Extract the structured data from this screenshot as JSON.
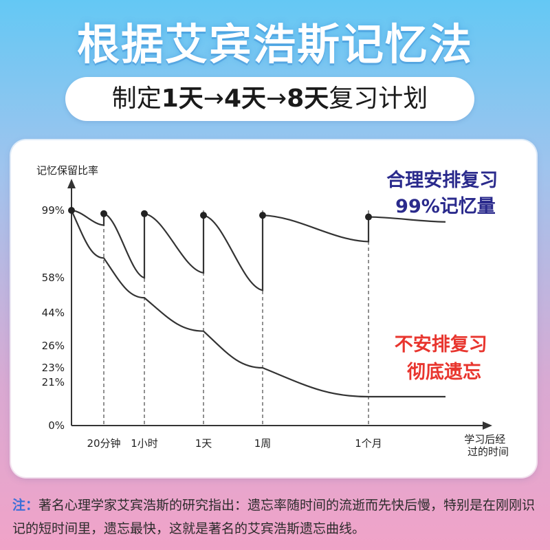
{
  "header": {
    "title_prefix": "根据",
    "title_highlight": "艾宾浩斯记忆法",
    "subtitle_prefix": "制定",
    "subtitle_d1": "1天",
    "subtitle_arrow1": "→",
    "subtitle_d2": "4天",
    "subtitle_arrow2": "→",
    "subtitle_d3": "8天",
    "subtitle_suffix": "复习计划"
  },
  "note": {
    "label": "注：",
    "text": "著名心理学家艾宾浩斯的研究指出：遗忘率随时间的流逝而先快后慢，特别是在刚刚识记的短时间里，遗忘最快，这就是著名的艾宾浩斯遗忘曲线。"
  },
  "colors": {
    "title_highlight": "#ffffff",
    "review_label": "#2a2a8c",
    "forget_label": "#e8352e",
    "curve": "#333333"
  },
  "chart_data": {
    "type": "line",
    "ylabel": "记忆保留比率",
    "xlabel": "学习后经过的时间",
    "y_ticks": [
      "99%",
      "58%",
      "44%",
      "26%",
      "23%",
      "21%",
      "0%"
    ],
    "x_ticks": [
      "20分钟",
      "1小时",
      "1天",
      "1周",
      "1个月"
    ],
    "annotations": [
      {
        "name": "review",
        "lines": [
          "合理安排复习",
          "99%记忆量"
        ]
      },
      {
        "name": "forget",
        "lines": [
          "不安排复习",
          "彻底遗忘"
        ]
      }
    ],
    "series": [
      {
        "name": "合理安排复习",
        "points": [
          {
            "t": "0",
            "y": 99
          },
          {
            "t": "20分钟",
            "y": 90
          },
          {
            "t": "20分钟",
            "y": 97
          },
          {
            "t": "1小时",
            "y": 58
          },
          {
            "t": "1小时",
            "y": 97
          },
          {
            "t": "1天",
            "y": 61
          },
          {
            "t": "1天",
            "y": 96
          },
          {
            "t": "1周",
            "y": 53
          },
          {
            "t": "1周",
            "y": 96
          },
          {
            "t": "1个月",
            "y": 80
          },
          {
            "t": "1个月",
            "y": 95
          },
          {
            "t": "end",
            "y": 92
          }
        ]
      },
      {
        "name": "不安排复习",
        "points": [
          {
            "t": "0",
            "y": 99
          },
          {
            "t": "20分钟",
            "y": 70
          },
          {
            "t": "1小时",
            "y": 50
          },
          {
            "t": "1天",
            "y": 34
          },
          {
            "t": "1周",
            "y": 23
          },
          {
            "t": "1个月",
            "y": 14
          },
          {
            "t": "end",
            "y": 14
          }
        ]
      }
    ]
  }
}
